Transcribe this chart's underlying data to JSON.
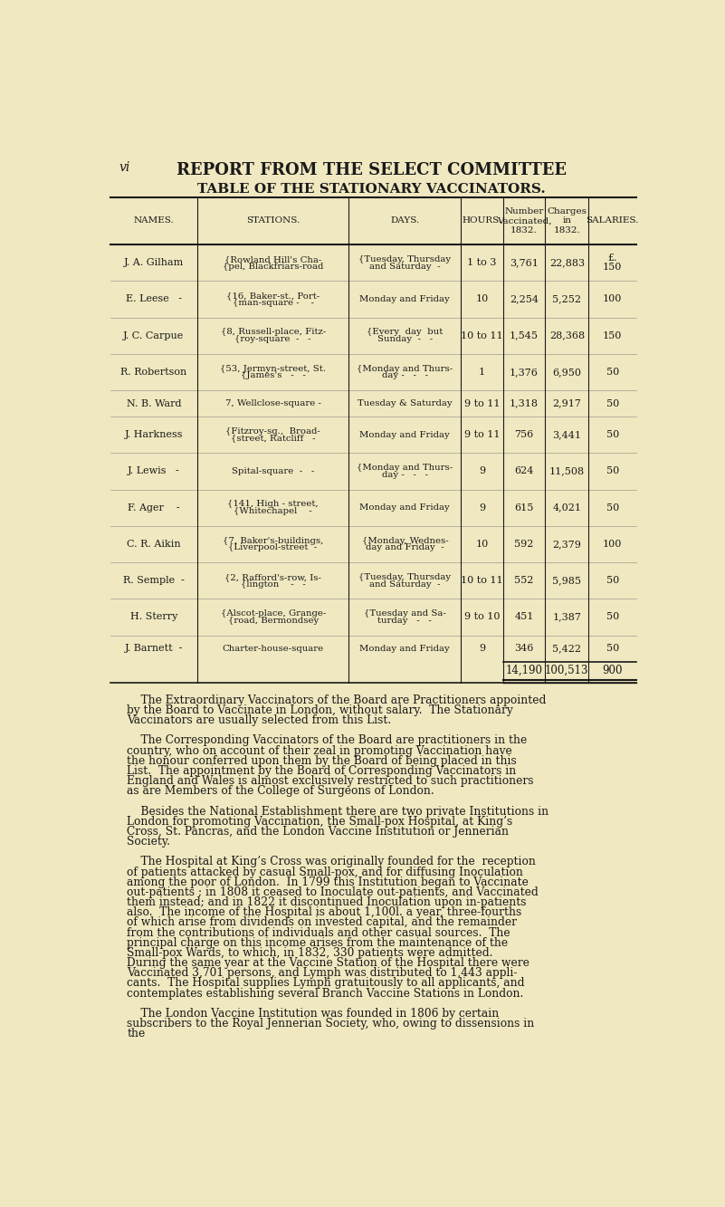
{
  "bg_color": "#f0e8c0",
  "page_header_left": "vi",
  "page_header_center": "REPORT FROM THE SELECT COMMITTEE",
  "table_title": "TABLE OF THE STATIONARY VACCINATORS.",
  "col_headers": [
    "NAMES.",
    "STATIONS.",
    "DAYS.",
    "HOURS.",
    "Number\nVaccinated,\n1832.",
    "Charges\nin\n1832.",
    "SALARIES."
  ],
  "rows": [
    {
      "name": "J. A. Gilham",
      "station_lines": [
        "Rowland Hill's Cha-",
        "pel, Blackfriars-road"
      ],
      "station_bracket": true,
      "days_lines": [
        "Tuesday, Thursday",
        "and Saturday  -"
      ],
      "days_bracket": true,
      "hours": "1 to 3",
      "vaccinated": "3,761",
      "charges": "22,883",
      "salary": "150",
      "salary_prefix": "£."
    },
    {
      "name": "E. Leese   -",
      "station_lines": [
        "16, Baker-st., Port-",
        "man-square -    -"
      ],
      "station_bracket": true,
      "days_lines": [
        "Monday and Friday"
      ],
      "days_bracket": false,
      "hours": "10",
      "vaccinated": "2,254",
      "charges": "5,252",
      "salary": "100",
      "salary_prefix": ""
    },
    {
      "name": "J. C. Carpue",
      "station_lines": [
        "8, Russell-place, Fitz-",
        "roy-square  -   -"
      ],
      "station_bracket": true,
      "days_lines": [
        "Every  day  but",
        "Sunday  -   -"
      ],
      "days_bracket": true,
      "hours": "10 to 11",
      "vaccinated": "1,545",
      "charges": "28,368",
      "salary": "150",
      "salary_prefix": ""
    },
    {
      "name": "R. Robertson",
      "station_lines": [
        "53, Jermyn-street, St.",
        "James's   -   -"
      ],
      "station_bracket": true,
      "days_lines": [
        "Monday and Thurs-",
        "day -   -   -"
      ],
      "days_bracket": true,
      "hours": "1",
      "vaccinated": "1,376",
      "charges": "6,950",
      "salary": "50",
      "salary_prefix": ""
    },
    {
      "name": "N. B. Ward",
      "station_lines": [
        "7, Wellclose-square -"
      ],
      "station_bracket": false,
      "days_lines": [
        "Tuesday & Saturday"
      ],
      "days_bracket": false,
      "hours": "9 to 11",
      "vaccinated": "1,318",
      "charges": "2,917",
      "salary": "50",
      "salary_prefix": ""
    },
    {
      "name": "J. Harkness",
      "station_lines": [
        "Fitzroy-sq.,  Broad-",
        "street, Ratcliff   -"
      ],
      "station_bracket": true,
      "days_lines": [
        "Monday and Friday"
      ],
      "days_bracket": false,
      "hours": "9 to 11",
      "vaccinated": "756",
      "charges": "3,441",
      "salary": "50",
      "salary_prefix": ""
    },
    {
      "name": "J. Lewis   -",
      "station_lines": [
        "Spital-square  -   -"
      ],
      "station_bracket": false,
      "days_lines": [
        "Monday and Thurs-",
        "day -   -   -"
      ],
      "days_bracket": true,
      "hours": "9",
      "vaccinated": "624",
      "charges": "11,508",
      "salary": "50",
      "salary_prefix": ""
    },
    {
      "name": "F. Ager    -",
      "station_lines": [
        "141, High - street,",
        "Whitechapel    -"
      ],
      "station_bracket": true,
      "days_lines": [
        "Monday and Friday"
      ],
      "days_bracket": false,
      "hours": "9",
      "vaccinated": "615",
      "charges": "4,021",
      "salary": "50",
      "salary_prefix": ""
    },
    {
      "name": "C. R. Aikin",
      "station_lines": [
        "7, Baker's-buildings,",
        "Liverpool-street  -"
      ],
      "station_bracket": true,
      "days_lines": [
        "Monday, Wednes-",
        "day and Friday  -"
      ],
      "days_bracket": true,
      "hours": "10",
      "vaccinated": "592",
      "charges": "2,379",
      "salary": "100",
      "salary_prefix": ""
    },
    {
      "name": "R. Semple  -",
      "station_lines": [
        "2, Rafford's-row, Is-",
        "lington    -   -"
      ],
      "station_bracket": true,
      "days_lines": [
        "Tuesday, Thursday",
        "and Saturday  -"
      ],
      "days_bracket": true,
      "hours": "10 to 11",
      "vaccinated": "552",
      "charges": "5,985",
      "salary": "50",
      "salary_prefix": ""
    },
    {
      "name": "H. Sterry",
      "station_lines": [
        "Alscot-place, Grange-",
        "road, Bermondsey"
      ],
      "station_bracket": true,
      "days_lines": [
        "Tuesday and Sa-",
        "turday   -   -"
      ],
      "days_bracket": true,
      "hours": "9 to 10",
      "vaccinated": "451",
      "charges": "1,387",
      "salary": "50",
      "salary_prefix": ""
    },
    {
      "name": "J. Barnett  -",
      "station_lines": [
        "Charter-house-square"
      ],
      "station_bracket": false,
      "days_lines": [
        "Monday and Friday"
      ],
      "days_bracket": false,
      "hours": "9",
      "vaccinated": "346",
      "charges": "5,422",
      "salary": "50",
      "salary_prefix": ""
    }
  ],
  "totals": {
    "vaccinated": "14,190",
    "charges": "100,513",
    "salary": "900"
  },
  "body_text": [
    "    The Extraordinary Vaccinators of the Board are Practitioners appointed",
    "by the Board to Vaccinate in London, without salary.  The Stationary",
    "Vaccinators are usually selected from this List.",
    "",
    "    The Corresponding Vaccinators of the Board are practitioners in the",
    "country, who on account of their zeal in promoting Vaccination have",
    "the honour conferred upon them by the Board of being placed in this",
    "List.  The appointment by the Board of Corresponding Vaccinators in",
    "England and Wales is almost exclusively restricted to such practitioners",
    "as are Members of the College of Surgeons of London.",
    "",
    "    Besides the National Establishment there are two private Institutions in",
    "London for promoting Vaccination, the Small-pox Hospital, at King’s",
    "Cross, St. Pancras, and the London Vaccine Institution or Jennerian",
    "Society.",
    "",
    "    The Hospital at King’s Cross was originally founded for the  reception",
    "of patients attacked by casual Small-pox, and for diffusing Inoculation",
    "among the poor of London.  In 1799 this Institution began to Vaccinate",
    "out-patients ; in 1808 it ceased to Inoculate out-patients, and Vaccinated",
    "them instead; and in 1822 it discontinued Inoculation upon in-patients",
    "also.  The income of the Hospital is about 1,100l. a year, three-fourths",
    "of which arise from dividends on invested capital, and the remainder",
    "from the contributions of individuals and other casual sources.  The",
    "principal charge on this income arises from the maintenance of the",
    "Small-pox Wards, to which, in 1832, 330 patients were admitted.",
    "During the same year at the Vaccine Station of the Hospital there were",
    "Vaccinated 3,701 persons, and Lymph was distributed to 1,443 appli-",
    "cants.  The Hospital supplies Lymph gratuitously to all applicants, and",
    "contemplates establishing several Branch Vaccine Stations in London.",
    "",
    "    The London Vaccine Institution was founded in 1806 by certain",
    "subscribers to the Royal Jennerian Society, who, owing to dissensions in",
    "the"
  ]
}
